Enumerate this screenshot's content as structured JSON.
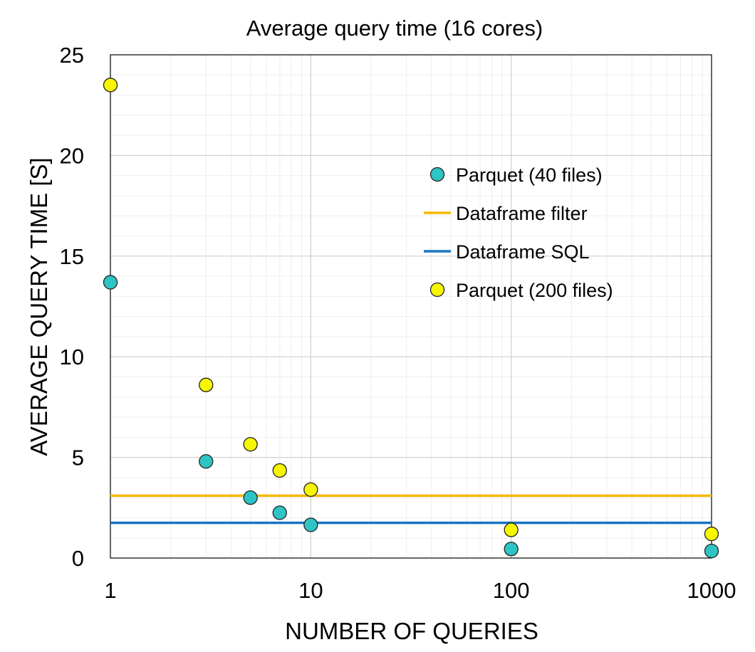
{
  "chart_data": {
    "type": "scatter",
    "title": "Average query time (16 cores)",
    "xlabel": "NUMBER OF QUERIES",
    "ylabel": "AVERAGE QUERY TIME [S]",
    "x_scale": "log",
    "xlim": [
      1,
      1000
    ],
    "ylim": [
      0,
      25
    ],
    "x_ticks": [
      "1",
      "10",
      "100",
      "1000"
    ],
    "y_ticks": [
      "0",
      "5",
      "10",
      "15",
      "20",
      "25"
    ],
    "grid": true,
    "legend_position": "top-right",
    "series": [
      {
        "name": "Parquet (40 files)",
        "kind": "scatter",
        "color": "#2ec4c4",
        "x": [
          1,
          3,
          5,
          7,
          10,
          100,
          1000
        ],
        "y": [
          13.7,
          4.8,
          3.0,
          2.25,
          1.65,
          0.45,
          0.35
        ]
      },
      {
        "name": "Dataframe filter",
        "kind": "hline",
        "color": "#f5b800",
        "y": 3.1
      },
      {
        "name": "Dataframe SQL",
        "kind": "hline",
        "color": "#1874c4",
        "y": 1.75
      },
      {
        "name": "Parquet (200 files)",
        "kind": "scatter",
        "color": "#f7f700",
        "x": [
          1,
          3,
          5,
          7,
          10,
          100,
          1000
        ],
        "y": [
          23.5,
          8.6,
          5.65,
          4.35,
          3.4,
          1.4,
          1.2
        ]
      }
    ]
  }
}
